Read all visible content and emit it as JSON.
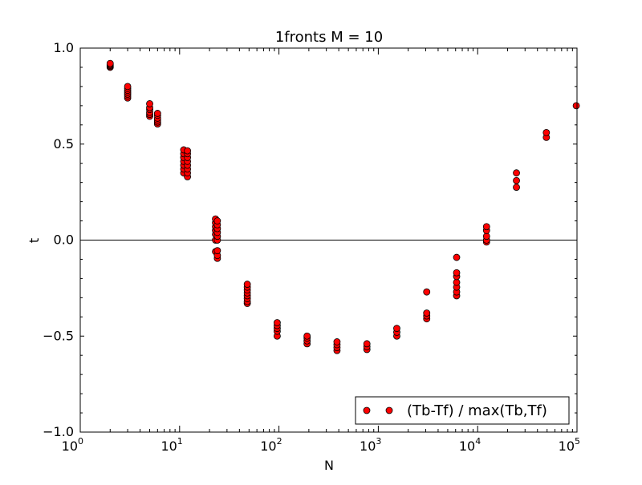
{
  "chart_data": {
    "type": "scatter",
    "title": "1fronts M = 10",
    "xlabel": "N",
    "ylabel": "t",
    "xscale": "log",
    "xlim": [
      1,
      100000
    ],
    "ylim": [
      -1.0,
      1.0
    ],
    "x_ticks": [
      {
        "value": 1,
        "base": "10",
        "exp": "0"
      },
      {
        "value": 10,
        "base": "10",
        "exp": "1"
      },
      {
        "value": 100,
        "base": "10",
        "exp": "2"
      },
      {
        "value": 1000,
        "base": "10",
        "exp": "3"
      },
      {
        "value": 10000,
        "base": "10",
        "exp": "4"
      },
      {
        "value": 100000,
        "base": "10",
        "exp": "5"
      }
    ],
    "y_ticks": [
      {
        "value": 1.0,
        "label": "1.0"
      },
      {
        "value": 0.5,
        "label": "0.5"
      },
      {
        "value": 0.0,
        "label": "0.0"
      },
      {
        "value": -0.5,
        "label": "−0.5"
      },
      {
        "value": -1.0,
        "label": "−1.0"
      }
    ],
    "reference_line_y": 0.0,
    "legend": {
      "label": "(Tb-Tf) / max(Tb,Tf)",
      "placement": "lower-right"
    },
    "series": [
      {
        "name": "(Tb-Tf) / max(Tb,Tf)",
        "marker_color": "#ff0000",
        "edge_color": "#000000",
        "groups": [
          {
            "x": 2,
            "y": [
              0.9,
              0.905,
              0.91,
              0.915,
              0.92
            ]
          },
          {
            "x": 3,
            "y": [
              0.74,
              0.75,
              0.76,
              0.77,
              0.78,
              0.79,
              0.8
            ]
          },
          {
            "x": 5,
            "y": [
              0.645,
              0.655,
              0.665,
              0.68,
              0.69,
              0.71
            ]
          },
          {
            "x": 6,
            "y": [
              0.605,
              0.615,
              0.625,
              0.635,
              0.65,
              0.66
            ]
          },
          {
            "x": 11,
            "y": [
              0.35,
              0.37,
              0.39,
              0.41,
              0.43,
              0.45,
              0.47
            ]
          },
          {
            "x": 12,
            "y": [
              0.33,
              0.35,
              0.37,
              0.39,
              0.41,
              0.43,
              0.45,
              0.465
            ]
          },
          {
            "x": 23,
            "y": [
              -0.06,
              0.0,
              0.03,
              0.05,
              0.07,
              0.09,
              0.11
            ]
          },
          {
            "x": 24,
            "y": [
              -0.095,
              -0.08,
              -0.055,
              0.0,
              0.02,
              0.04,
              0.06,
              0.08,
              0.1
            ]
          },
          {
            "x": 48,
            "y": [
              -0.33,
              -0.32,
              -0.305,
              -0.29,
              -0.275,
              -0.26,
              -0.245,
              -0.23
            ]
          },
          {
            "x": 96,
            "y": [
              -0.5,
              -0.475,
              -0.46,
              -0.445,
              -0.43
            ]
          },
          {
            "x": 192,
            "y": [
              -0.54,
              -0.525,
              -0.51,
              -0.5
            ]
          },
          {
            "x": 384,
            "y": [
              -0.575,
              -0.56,
              -0.545,
              -0.53
            ]
          },
          {
            "x": 768,
            "y": [
              -0.57,
              -0.555,
              -0.54
            ]
          },
          {
            "x": 1536,
            "y": [
              -0.5,
              -0.48,
              -0.46
            ]
          },
          {
            "x": 3072,
            "y": [
              -0.41,
              -0.395,
              -0.38,
              -0.27
            ]
          },
          {
            "x": 6144,
            "y": [
              -0.29,
              -0.27,
              -0.245,
              -0.22,
              -0.19,
              -0.17,
              -0.09
            ]
          },
          {
            "x": 12288,
            "y": [
              -0.01,
              0.0,
              0.02,
              0.05,
              0.07
            ]
          },
          {
            "x": 24576,
            "y": [
              0.275,
              0.31,
              0.35
            ]
          },
          {
            "x": 49152,
            "y": [
              0.535,
              0.56
            ]
          },
          {
            "x": 98304,
            "y": [
              0.7
            ]
          }
        ]
      }
    ]
  }
}
